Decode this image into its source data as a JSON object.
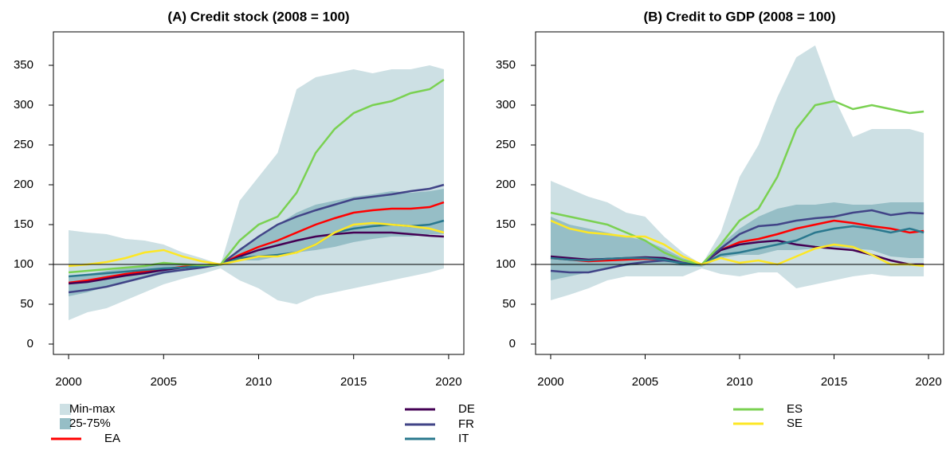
{
  "chart_data": [
    {
      "type": "line",
      "title": "(A) Credit stock (2008 = 100)",
      "x": [
        2000,
        2001,
        2002,
        2003,
        2004,
        2005,
        2006,
        2007,
        2008,
        2009,
        2010,
        2011,
        2012,
        2013,
        2014,
        2015,
        2016,
        2017,
        2018,
        2019,
        2019.75
      ],
      "xlim": [
        1999.2,
        2020.8
      ],
      "xticks": [
        2000,
        2005,
        2010,
        2015,
        2020
      ],
      "ylim": [
        -13,
        392
      ],
      "yticks": [
        0,
        50,
        100,
        150,
        200,
        250,
        300,
        350
      ],
      "hline": 100,
      "series": [
        {
          "name": "Min-max",
          "type": "band",
          "color": "#cde0e4",
          "low": [
            30,
            40,
            45,
            55,
            65,
            75,
            82,
            88,
            95,
            80,
            70,
            55,
            50,
            60,
            65,
            70,
            75,
            80,
            85,
            90,
            95
          ],
          "high": [
            143,
            140,
            138,
            132,
            130,
            125,
            115,
            108,
            100,
            180,
            210,
            240,
            320,
            335,
            340,
            345,
            340,
            345,
            345,
            350,
            345
          ]
        },
        {
          "name": "25-75%",
          "type": "band",
          "color": "#96bec6",
          "low": [
            60,
            65,
            72,
            78,
            83,
            88,
            92,
            96,
            98,
            105,
            105,
            110,
            115,
            118,
            122,
            128,
            132,
            135,
            135,
            138,
            138
          ],
          "high": [
            85,
            88,
            92,
            95,
            98,
            102,
            102,
            100,
            100,
            120,
            135,
            150,
            165,
            175,
            180,
            185,
            188,
            192,
            190,
            192,
            195
          ]
        },
        {
          "name": "EA",
          "color": "#ff0000",
          "values": [
            77,
            80,
            84,
            88,
            91,
            94,
            97,
            99,
            100,
            112,
            122,
            130,
            140,
            150,
            158,
            165,
            168,
            170,
            170,
            172,
            178
          ]
        },
        {
          "name": "DE",
          "color": "#440154",
          "values": [
            76,
            78,
            82,
            86,
            89,
            93,
            96,
            98,
            100,
            110,
            118,
            124,
            130,
            135,
            138,
            140,
            140,
            140,
            138,
            136,
            135
          ]
        },
        {
          "name": "FR",
          "color": "#414487",
          "values": [
            65,
            68,
            72,
            78,
            84,
            90,
            93,
            96,
            100,
            118,
            135,
            150,
            160,
            168,
            175,
            182,
            185,
            188,
            192,
            195,
            200
          ]
        },
        {
          "name": "IT",
          "color": "#2a788e",
          "values": [
            85,
            87,
            89,
            91,
            93,
            95,
            96,
            98,
            100,
            108,
            110,
            112,
            115,
            125,
            140,
            145,
            148,
            150,
            148,
            150,
            155
          ]
        },
        {
          "name": "ES",
          "color": "#7ad151",
          "values": [
            90,
            92,
            94,
            96,
            98,
            102,
            100,
            99,
            100,
            130,
            150,
            160,
            190,
            240,
            270,
            290,
            300,
            305,
            315,
            320,
            332
          ]
        },
        {
          "name": "SE",
          "color": "#fde725",
          "values": [
            98,
            100,
            103,
            108,
            115,
            118,
            110,
            104,
            100,
            105,
            110,
            110,
            115,
            125,
            140,
            150,
            152,
            150,
            148,
            145,
            140
          ]
        }
      ]
    },
    {
      "type": "line",
      "title": "(B) Credit to GDP (2008 = 100)",
      "x": [
        2000,
        2001,
        2002,
        2003,
        2004,
        2005,
        2006,
        2007,
        2008,
        2009,
        2010,
        2011,
        2012,
        2013,
        2014,
        2015,
        2016,
        2017,
        2018,
        2019,
        2019.75
      ],
      "xlim": [
        1999.2,
        2020.8
      ],
      "xticks": [
        2000,
        2005,
        2010,
        2015,
        2020
      ],
      "ylim": [
        -13,
        392
      ],
      "yticks": [
        0,
        50,
        100,
        150,
        200,
        250,
        300,
        350
      ],
      "hline": 100,
      "series": [
        {
          "type": "band",
          "color": "#cde0e4",
          "low": [
            55,
            62,
            70,
            80,
            85,
            85,
            85,
            85,
            95,
            88,
            85,
            90,
            90,
            70,
            75,
            80,
            85,
            88,
            85,
            85,
            85
          ],
          "high": [
            205,
            195,
            185,
            178,
            165,
            160,
            135,
            115,
            100,
            140,
            210,
            250,
            310,
            360,
            375,
            310,
            260,
            270,
            270,
            270,
            265
          ]
        },
        {
          "type": "band",
          "color": "#96bec6",
          "low": [
            80,
            85,
            90,
            95,
            98,
            100,
            100,
            98,
            97,
            108,
            112,
            112,
            118,
            118,
            120,
            122,
            120,
            118,
            110,
            108,
            108
          ],
          "high": [
            160,
            150,
            145,
            140,
            135,
            130,
            120,
            108,
            100,
            125,
            145,
            160,
            170,
            175,
            175,
            178,
            175,
            175,
            178,
            178,
            178
          ]
        },
        {
          "color": "#ff0000",
          "values": [
            108,
            106,
            104,
            105,
            106,
            107,
            106,
            102,
            100,
            118,
            128,
            132,
            138,
            145,
            150,
            155,
            152,
            148,
            145,
            140,
            142
          ]
        },
        {
          "color": "#440154",
          "values": [
            110,
            108,
            106,
            107,
            108,
            109,
            108,
            102,
            100,
            118,
            125,
            128,
            130,
            125,
            122,
            120,
            118,
            112,
            105,
            100,
            100
          ]
        },
        {
          "color": "#414487",
          "values": [
            92,
            90,
            90,
            95,
            100,
            103,
            105,
            102,
            100,
            120,
            138,
            148,
            150,
            155,
            158,
            160,
            165,
            168,
            162,
            165,
            164
          ]
        },
        {
          "color": "#2a788e",
          "values": [
            108,
            106,
            105,
            107,
            108,
            108,
            106,
            101,
            100,
            112,
            115,
            120,
            125,
            130,
            140,
            145,
            148,
            145,
            140,
            145,
            140
          ]
        },
        {
          "color": "#7ad151",
          "values": [
            165,
            160,
            155,
            150,
            140,
            130,
            115,
            105,
            100,
            125,
            155,
            170,
            210,
            270,
            300,
            305,
            295,
            300,
            295,
            290,
            292
          ]
        },
        {
          "color": "#fde725",
          "values": [
            155,
            145,
            140,
            138,
            135,
            135,
            125,
            110,
            100,
            108,
            102,
            105,
            100,
            110,
            120,
            125,
            122,
            112,
            100,
            100,
            98
          ]
        }
      ]
    }
  ]
}
